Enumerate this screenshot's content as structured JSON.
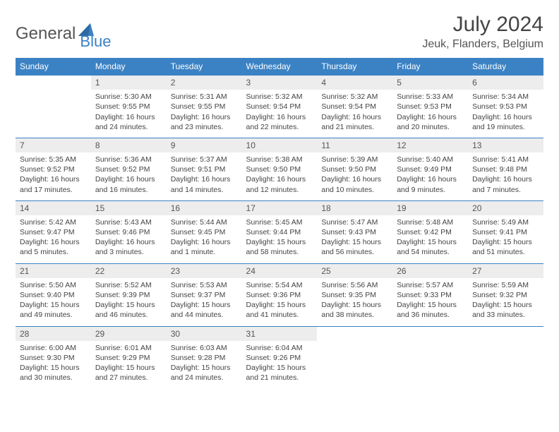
{
  "brand": {
    "part1": "General",
    "part2": "Blue"
  },
  "title": "July 2024",
  "location": "Jeuk, Flanders, Belgium",
  "colors": {
    "header_bg": "#3b82c4",
    "header_fg": "#ffffff",
    "daynum_bg": "#ededed",
    "rule": "#3b82c4",
    "text": "#444444"
  },
  "weekdays": [
    "Sunday",
    "Monday",
    "Tuesday",
    "Wednesday",
    "Thursday",
    "Friday",
    "Saturday"
  ],
  "weeks": [
    [
      {
        "n": "",
        "sr": "",
        "ss": "",
        "dl": ""
      },
      {
        "n": "1",
        "sr": "Sunrise: 5:30 AM",
        "ss": "Sunset: 9:55 PM",
        "dl": "Daylight: 16 hours and 24 minutes."
      },
      {
        "n": "2",
        "sr": "Sunrise: 5:31 AM",
        "ss": "Sunset: 9:55 PM",
        "dl": "Daylight: 16 hours and 23 minutes."
      },
      {
        "n": "3",
        "sr": "Sunrise: 5:32 AM",
        "ss": "Sunset: 9:54 PM",
        "dl": "Daylight: 16 hours and 22 minutes."
      },
      {
        "n": "4",
        "sr": "Sunrise: 5:32 AM",
        "ss": "Sunset: 9:54 PM",
        "dl": "Daylight: 16 hours and 21 minutes."
      },
      {
        "n": "5",
        "sr": "Sunrise: 5:33 AM",
        "ss": "Sunset: 9:53 PM",
        "dl": "Daylight: 16 hours and 20 minutes."
      },
      {
        "n": "6",
        "sr": "Sunrise: 5:34 AM",
        "ss": "Sunset: 9:53 PM",
        "dl": "Daylight: 16 hours and 19 minutes."
      }
    ],
    [
      {
        "n": "7",
        "sr": "Sunrise: 5:35 AM",
        "ss": "Sunset: 9:52 PM",
        "dl": "Daylight: 16 hours and 17 minutes."
      },
      {
        "n": "8",
        "sr": "Sunrise: 5:36 AM",
        "ss": "Sunset: 9:52 PM",
        "dl": "Daylight: 16 hours and 16 minutes."
      },
      {
        "n": "9",
        "sr": "Sunrise: 5:37 AM",
        "ss": "Sunset: 9:51 PM",
        "dl": "Daylight: 16 hours and 14 minutes."
      },
      {
        "n": "10",
        "sr": "Sunrise: 5:38 AM",
        "ss": "Sunset: 9:50 PM",
        "dl": "Daylight: 16 hours and 12 minutes."
      },
      {
        "n": "11",
        "sr": "Sunrise: 5:39 AM",
        "ss": "Sunset: 9:50 PM",
        "dl": "Daylight: 16 hours and 10 minutes."
      },
      {
        "n": "12",
        "sr": "Sunrise: 5:40 AM",
        "ss": "Sunset: 9:49 PM",
        "dl": "Daylight: 16 hours and 9 minutes."
      },
      {
        "n": "13",
        "sr": "Sunrise: 5:41 AM",
        "ss": "Sunset: 9:48 PM",
        "dl": "Daylight: 16 hours and 7 minutes."
      }
    ],
    [
      {
        "n": "14",
        "sr": "Sunrise: 5:42 AM",
        "ss": "Sunset: 9:47 PM",
        "dl": "Daylight: 16 hours and 5 minutes."
      },
      {
        "n": "15",
        "sr": "Sunrise: 5:43 AM",
        "ss": "Sunset: 9:46 PM",
        "dl": "Daylight: 16 hours and 3 minutes."
      },
      {
        "n": "16",
        "sr": "Sunrise: 5:44 AM",
        "ss": "Sunset: 9:45 PM",
        "dl": "Daylight: 16 hours and 1 minute."
      },
      {
        "n": "17",
        "sr": "Sunrise: 5:45 AM",
        "ss": "Sunset: 9:44 PM",
        "dl": "Daylight: 15 hours and 58 minutes."
      },
      {
        "n": "18",
        "sr": "Sunrise: 5:47 AM",
        "ss": "Sunset: 9:43 PM",
        "dl": "Daylight: 15 hours and 56 minutes."
      },
      {
        "n": "19",
        "sr": "Sunrise: 5:48 AM",
        "ss": "Sunset: 9:42 PM",
        "dl": "Daylight: 15 hours and 54 minutes."
      },
      {
        "n": "20",
        "sr": "Sunrise: 5:49 AM",
        "ss": "Sunset: 9:41 PM",
        "dl": "Daylight: 15 hours and 51 minutes."
      }
    ],
    [
      {
        "n": "21",
        "sr": "Sunrise: 5:50 AM",
        "ss": "Sunset: 9:40 PM",
        "dl": "Daylight: 15 hours and 49 minutes."
      },
      {
        "n": "22",
        "sr": "Sunrise: 5:52 AM",
        "ss": "Sunset: 9:39 PM",
        "dl": "Daylight: 15 hours and 46 minutes."
      },
      {
        "n": "23",
        "sr": "Sunrise: 5:53 AM",
        "ss": "Sunset: 9:37 PM",
        "dl": "Daylight: 15 hours and 44 minutes."
      },
      {
        "n": "24",
        "sr": "Sunrise: 5:54 AM",
        "ss": "Sunset: 9:36 PM",
        "dl": "Daylight: 15 hours and 41 minutes."
      },
      {
        "n": "25",
        "sr": "Sunrise: 5:56 AM",
        "ss": "Sunset: 9:35 PM",
        "dl": "Daylight: 15 hours and 38 minutes."
      },
      {
        "n": "26",
        "sr": "Sunrise: 5:57 AM",
        "ss": "Sunset: 9:33 PM",
        "dl": "Daylight: 15 hours and 36 minutes."
      },
      {
        "n": "27",
        "sr": "Sunrise: 5:59 AM",
        "ss": "Sunset: 9:32 PM",
        "dl": "Daylight: 15 hours and 33 minutes."
      }
    ],
    [
      {
        "n": "28",
        "sr": "Sunrise: 6:00 AM",
        "ss": "Sunset: 9:30 PM",
        "dl": "Daylight: 15 hours and 30 minutes."
      },
      {
        "n": "29",
        "sr": "Sunrise: 6:01 AM",
        "ss": "Sunset: 9:29 PM",
        "dl": "Daylight: 15 hours and 27 minutes."
      },
      {
        "n": "30",
        "sr": "Sunrise: 6:03 AM",
        "ss": "Sunset: 9:28 PM",
        "dl": "Daylight: 15 hours and 24 minutes."
      },
      {
        "n": "31",
        "sr": "Sunrise: 6:04 AM",
        "ss": "Sunset: 9:26 PM",
        "dl": "Daylight: 15 hours and 21 minutes."
      },
      {
        "n": "",
        "sr": "",
        "ss": "",
        "dl": ""
      },
      {
        "n": "",
        "sr": "",
        "ss": "",
        "dl": ""
      },
      {
        "n": "",
        "sr": "",
        "ss": "",
        "dl": ""
      }
    ]
  ]
}
